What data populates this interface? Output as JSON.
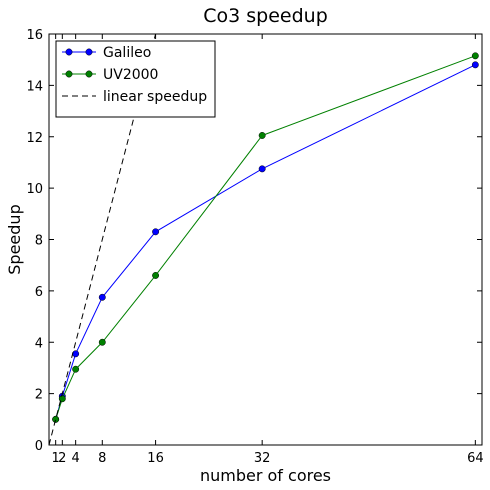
{
  "chart_data": {
    "type": "line",
    "title": "Co3 speedup",
    "xlabel": "number of cores",
    "ylabel": "Speedup",
    "xlim": [
      0,
      65
    ],
    "ylim": [
      0,
      16
    ],
    "xticks": [
      1,
      2,
      4,
      8,
      16,
      32,
      64
    ],
    "xtick_labels": [
      "1",
      "2",
      "4",
      "8",
      "16",
      "32",
      "64"
    ],
    "yticks": [
      0,
      2,
      4,
      6,
      8,
      10,
      12,
      14,
      16
    ],
    "ytick_labels": [
      "0",
      "2",
      "4",
      "6",
      "8",
      "10",
      "12",
      "14",
      "16"
    ],
    "legend_position": "top-left",
    "grid": false,
    "series": [
      {
        "name": "Galileo",
        "color": "#0000ff",
        "marker": "circle",
        "line": "solid",
        "x": [
          1,
          2,
          4,
          8,
          16,
          32,
          64
        ],
        "y": [
          1.0,
          1.9,
          3.55,
          5.75,
          8.3,
          10.75,
          14.8
        ]
      },
      {
        "name": "UV2000",
        "color": "#008000",
        "marker": "circle",
        "line": "solid",
        "x": [
          1,
          2,
          4,
          8,
          16,
          32,
          64
        ],
        "y": [
          1.0,
          1.8,
          2.95,
          4.0,
          6.6,
          12.05,
          15.15
        ]
      },
      {
        "name": "linear speedup",
        "color": "#000000",
        "marker": "none",
        "line": "dashed",
        "x": [
          0,
          16
        ],
        "y": [
          0,
          16
        ]
      }
    ]
  }
}
